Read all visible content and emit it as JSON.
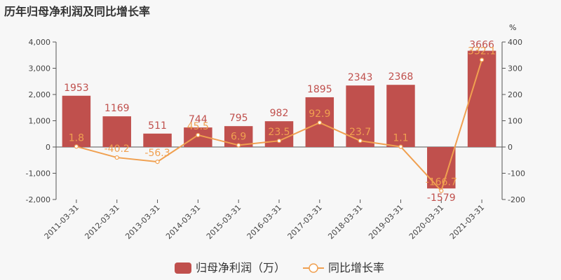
{
  "chart_data": {
    "type": "bar",
    "title": "历年归母净利润及同比增长率",
    "categories": [
      "2011-03-31",
      "2012-03-31",
      "2013-03-31",
      "2014-03-31",
      "2015-03-31",
      "2016-03-31",
      "2017-03-31",
      "2018-03-31",
      "2019-03-31",
      "2020-03-31",
      "2021-03-31"
    ],
    "series": [
      {
        "name": "归母净利润（万）",
        "type": "bar",
        "axis": "left",
        "color": "#c0504d",
        "values": [
          1953,
          1169,
          511,
          744,
          795,
          982,
          1895,
          2343,
          2368,
          -1579,
          3666
        ],
        "labels": [
          "1953",
          "1169",
          "511",
          "744",
          "795",
          "982",
          "1895",
          "2343",
          "2368",
          "-1579",
          "3666"
        ]
      },
      {
        "name": "同比增长率",
        "type": "line",
        "axis": "right",
        "color": "#f0a050",
        "values": [
          1.8,
          -40.2,
          -56.3,
          45.5,
          6.9,
          23.5,
          92.9,
          23.7,
          1.1,
          -166.7,
          332.1
        ],
        "labels": [
          "1.8",
          "-40.2",
          "-56.3",
          "45.5",
          "6.9",
          "23.5",
          "92.9",
          "23.7",
          "1.1",
          "-166.7",
          "332.1"
        ]
      }
    ],
    "y_left": {
      "ylim": [
        -2000,
        4000
      ],
      "ticks": [
        -2000,
        -1000,
        0,
        1000,
        2000,
        3000,
        4000
      ],
      "tick_labels": [
        "-2,000",
        "-1,000",
        "0",
        "1,000",
        "2,000",
        "3,000",
        "4,000"
      ]
    },
    "y_right": {
      "ylim": [
        -200,
        400
      ],
      "ticks": [
        -200,
        -100,
        0,
        100,
        200,
        300,
        400
      ],
      "tick_labels": [
        "-200",
        "-100",
        "0",
        "100",
        "200",
        "300",
        "400"
      ],
      "unit": "%"
    },
    "grid": false,
    "legend_position": "bottom-center"
  }
}
